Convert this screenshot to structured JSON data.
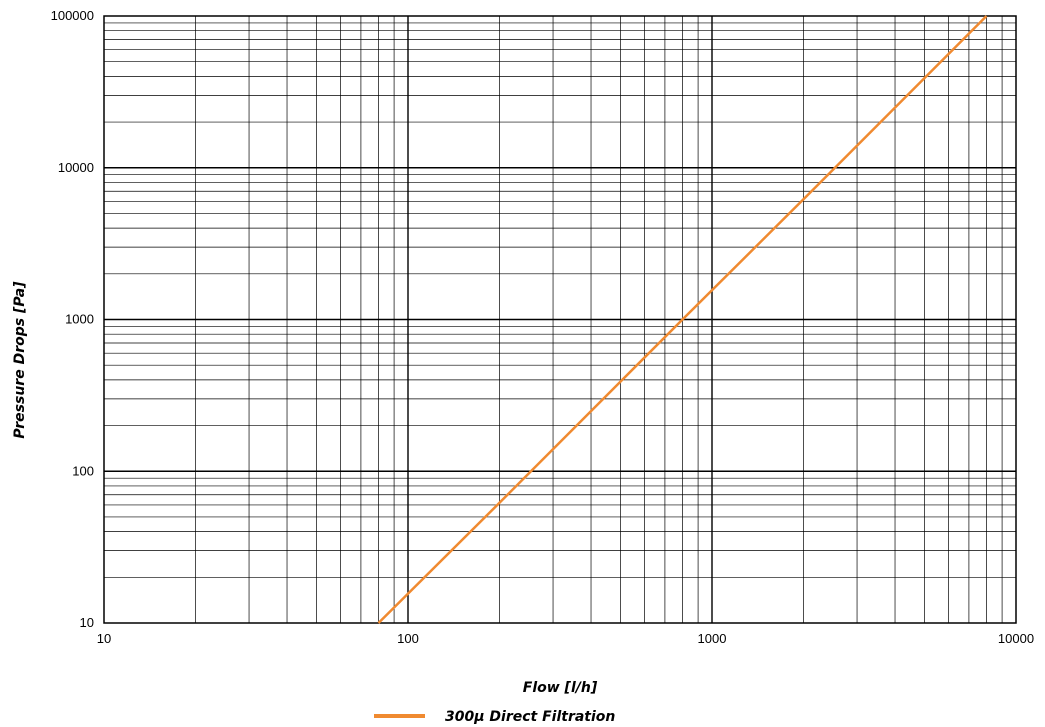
{
  "chart_data": {
    "type": "line",
    "xlabel": "Flow [l/h]",
    "ylabel": "Pressure Drops [Pa]",
    "x_scale": "log",
    "y_scale": "log",
    "xlim": [
      10,
      10000
    ],
    "ylim": [
      10,
      100000
    ],
    "grid": true,
    "x_ticks": [
      "10",
      "100",
      "1000",
      "10000"
    ],
    "y_ticks": [
      "10",
      "100",
      "1000",
      "10000",
      "100000"
    ],
    "legend_position": "bottom",
    "series": [
      {
        "name": "300μ Direct Filtration",
        "color": "#f08a30",
        "x": [
          80,
          200,
          800,
          2000,
          8000
        ],
        "y": [
          10,
          62,
          1000,
          6200,
          100000
        ]
      }
    ]
  }
}
